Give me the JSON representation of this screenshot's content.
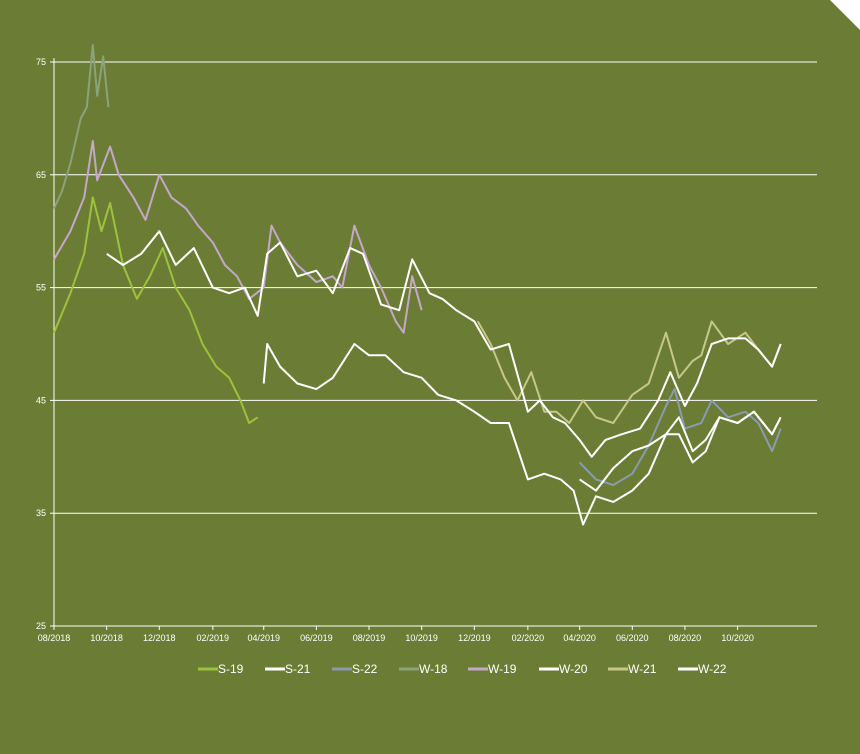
{
  "chart_data": {
    "type": "line",
    "title": "",
    "xlabel": "",
    "ylabel": "",
    "ylim": [
      25,
      75
    ],
    "yticks": [
      25,
      35,
      45,
      55,
      65,
      75
    ],
    "xlim": [
      "2018-08",
      "2021-01"
    ],
    "xticks": [
      "08/2018",
      "10/2018",
      "12/2018",
      "02/2019",
      "04/2019",
      "06/2019",
      "08/2019",
      "10/2019",
      "12/2019",
      "02/2020",
      "04/2020",
      "06/2020",
      "08/2020",
      "10/2020"
    ],
    "grid": "horizontal",
    "legend": "bottom",
    "series": [
      {
        "name": "W-18",
        "color": "#8aa37a",
        "points": [
          [
            "2018-08-01",
            62.0
          ],
          [
            "2018-08-10",
            63.5
          ],
          [
            "2018-08-20",
            66.0
          ],
          [
            "2018-09-01",
            70.0
          ],
          [
            "2018-09-08",
            71.0
          ],
          [
            "2018-09-15",
            76.5
          ],
          [
            "2018-09-20",
            72.0
          ],
          [
            "2018-09-27",
            75.5
          ],
          [
            "2018-10-03",
            71.0
          ]
        ]
      },
      {
        "name": "W-19",
        "color": "#c4a7c9",
        "points": [
          [
            "2018-08-01",
            57.5
          ],
          [
            "2018-08-20",
            60.0
          ],
          [
            "2018-09-05",
            63.0
          ],
          [
            "2018-09-15",
            68.0
          ],
          [
            "2018-09-20",
            64.5
          ],
          [
            "2018-10-05",
            67.5
          ],
          [
            "2018-10-15",
            65.0
          ],
          [
            "2018-11-01",
            63.0
          ],
          [
            "2018-11-15",
            61.0
          ],
          [
            "2018-12-01",
            65.0
          ],
          [
            "2018-12-15",
            63.0
          ],
          [
            "2019-01-01",
            62.0
          ],
          [
            "2019-01-15",
            60.5
          ],
          [
            "2019-02-01",
            59.0
          ],
          [
            "2019-02-15",
            57.0
          ],
          [
            "2019-03-01",
            56.0
          ],
          [
            "2019-03-15",
            54.0
          ],
          [
            "2019-04-01",
            55.0
          ],
          [
            "2019-04-10",
            60.5
          ],
          [
            "2019-04-20",
            59.0
          ],
          [
            "2019-05-10",
            57.0
          ],
          [
            "2019-06-01",
            55.5
          ],
          [
            "2019-06-20",
            56.0
          ],
          [
            "2019-07-01",
            55.0
          ],
          [
            "2019-07-15",
            60.5
          ],
          [
            "2019-08-01",
            57.0
          ],
          [
            "2019-08-15",
            55.0
          ],
          [
            "2019-09-01",
            52.0
          ],
          [
            "2019-09-10",
            51.0
          ],
          [
            "2019-09-20",
            56.0
          ],
          [
            "2019-10-01",
            53.0
          ]
        ]
      },
      {
        "name": "S-19",
        "color": "#9dc23b",
        "points": [
          [
            "2018-08-01",
            51.0
          ],
          [
            "2018-08-20",
            54.5
          ],
          [
            "2018-09-05",
            58.0
          ],
          [
            "2018-09-15",
            63.0
          ],
          [
            "2018-09-25",
            60.0
          ],
          [
            "2018-10-05",
            62.5
          ],
          [
            "2018-10-20",
            57.0
          ],
          [
            "2018-11-05",
            54.0
          ],
          [
            "2018-11-20",
            56.0
          ],
          [
            "2018-12-05",
            58.5
          ],
          [
            "2018-12-20",
            55.0
          ],
          [
            "2019-01-05",
            53.0
          ],
          [
            "2019-01-20",
            50.0
          ],
          [
            "2019-02-05",
            48.0
          ],
          [
            "2019-02-20",
            47.0
          ],
          [
            "2019-03-05",
            45.0
          ],
          [
            "2019-03-15",
            43.0
          ],
          [
            "2019-03-25",
            43.5
          ]
        ]
      },
      {
        "name": "S-21",
        "color": "#ffffff",
        "points": [
          [
            "2019-04-01",
            46.5
          ],
          [
            "2019-04-05",
            50.0
          ],
          [
            "2019-04-20",
            48.0
          ],
          [
            "2019-05-10",
            46.5
          ],
          [
            "2019-06-01",
            46.0
          ],
          [
            "2019-06-20",
            47.0
          ],
          [
            "2019-07-15",
            50.0
          ],
          [
            "2019-08-01",
            49.0
          ],
          [
            "2019-08-20",
            49.0
          ],
          [
            "2019-09-10",
            47.5
          ],
          [
            "2019-10-01",
            47.0
          ],
          [
            "2019-10-20",
            45.5
          ],
          [
            "2019-11-10",
            45.0
          ],
          [
            "2019-12-01",
            44.0
          ],
          [
            "2019-12-20",
            43.0
          ],
          [
            "2020-01-10",
            43.0
          ],
          [
            "2020-02-01",
            38.0
          ],
          [
            "2020-02-20",
            38.5
          ],
          [
            "2020-03-10",
            38.0
          ],
          [
            "2020-03-25",
            37.0
          ],
          [
            "2020-04-05",
            34.0
          ],
          [
            "2020-04-20",
            36.5
          ],
          [
            "2020-05-10",
            36.0
          ],
          [
            "2020-06-01",
            37.0
          ],
          [
            "2020-06-20",
            38.5
          ],
          [
            "2020-07-10",
            42.0
          ],
          [
            "2020-07-25",
            42.0
          ],
          [
            "2020-08-10",
            39.5
          ],
          [
            "2020-08-25",
            40.5
          ],
          [
            "2020-09-10",
            43.5
          ],
          [
            "2020-10-01",
            43.0
          ],
          [
            "2020-10-20",
            44.0
          ],
          [
            "2020-11-10",
            42.0
          ],
          [
            "2020-11-20",
            43.5
          ]
        ]
      },
      {
        "name": "W-21",
        "color": "#c6c78a",
        "points": [
          [
            "2019-12-05",
            52.0
          ],
          [
            "2019-12-20",
            50.0
          ],
          [
            "2020-01-05",
            47.0
          ],
          [
            "2020-01-20",
            45.0
          ],
          [
            "2020-02-05",
            47.5
          ],
          [
            "2020-02-20",
            44.0
          ],
          [
            "2020-03-05",
            44.0
          ],
          [
            "2020-03-20",
            43.0
          ],
          [
            "2020-04-05",
            45.0
          ],
          [
            "2020-04-20",
            43.5
          ],
          [
            "2020-05-10",
            43.0
          ],
          [
            "2020-06-01",
            45.5
          ],
          [
            "2020-06-20",
            46.5
          ],
          [
            "2020-07-10",
            51.0
          ],
          [
            "2020-07-25",
            47.0
          ],
          [
            "2020-08-10",
            48.5
          ],
          [
            "2020-08-20",
            49.0
          ],
          [
            "2020-09-01",
            52.0
          ],
          [
            "2020-09-20",
            50.0
          ],
          [
            "2020-10-10",
            51.0
          ],
          [
            "2020-10-25",
            49.5
          ],
          [
            "2020-11-10",
            48.0
          ],
          [
            "2020-11-20",
            50.0
          ]
        ]
      },
      {
        "name": "S-22",
        "color": "#8a9bb0",
        "points": [
          [
            "2020-04-01",
            39.5
          ],
          [
            "2020-04-20",
            38.0
          ],
          [
            "2020-05-10",
            37.5
          ],
          [
            "2020-06-01",
            38.5
          ],
          [
            "2020-06-20",
            41.0
          ],
          [
            "2020-07-10",
            44.5
          ],
          [
            "2020-07-20",
            46.0
          ],
          [
            "2020-08-01",
            42.5
          ],
          [
            "2020-08-20",
            43.0
          ],
          [
            "2020-09-01",
            45.0
          ],
          [
            "2020-09-20",
            43.5
          ],
          [
            "2020-10-10",
            44.0
          ],
          [
            "2020-10-25",
            43.0
          ],
          [
            "2020-11-10",
            40.5
          ],
          [
            "2020-11-20",
            42.5
          ]
        ]
      },
      {
        "name": "W-20",
        "color": "#ffffff",
        "points": [
          [
            "2018-10-01",
            58.0
          ],
          [
            "2018-10-20",
            57.0
          ],
          [
            "2018-11-10",
            58.0
          ],
          [
            "2018-12-01",
            60.0
          ],
          [
            "2018-12-20",
            57.0
          ],
          [
            "2019-01-10",
            58.5
          ],
          [
            "2019-02-01",
            55.0
          ],
          [
            "2019-02-20",
            54.5
          ],
          [
            "2019-03-10",
            55.0
          ],
          [
            "2019-03-25",
            52.5
          ],
          [
            "2019-04-05",
            58.0
          ],
          [
            "2019-04-20",
            59.0
          ],
          [
            "2019-05-10",
            56.0
          ],
          [
            "2019-06-01",
            56.5
          ],
          [
            "2019-06-20",
            54.5
          ],
          [
            "2019-07-10",
            58.5
          ],
          [
            "2019-07-25",
            58.0
          ],
          [
            "2019-08-15",
            53.5
          ],
          [
            "2019-09-05",
            53.0
          ],
          [
            "2019-09-20",
            57.5
          ],
          [
            "2019-10-10",
            54.5
          ],
          [
            "2019-10-25",
            54.0
          ],
          [
            "2019-11-10",
            53.0
          ],
          [
            "2019-12-01",
            52.0
          ],
          [
            "2019-12-20",
            49.5
          ],
          [
            "2020-01-10",
            50.0
          ],
          [
            "2020-02-01",
            44.0
          ],
          [
            "2020-02-15",
            45.0
          ],
          [
            "2020-03-01",
            43.5
          ],
          [
            "2020-03-15",
            43.0
          ],
          [
            "2020-04-01",
            41.5
          ],
          [
            "2020-04-15",
            40.0
          ],
          [
            "2020-05-01",
            41.5
          ],
          [
            "2020-05-20",
            42.0
          ],
          [
            "2020-06-10",
            42.5
          ],
          [
            "2020-07-01",
            45.0
          ],
          [
            "2020-07-15",
            47.5
          ],
          [
            "2020-08-01",
            44.5
          ],
          [
            "2020-08-15",
            46.5
          ],
          [
            "2020-09-01",
            50.0
          ],
          [
            "2020-09-20",
            50.5
          ],
          [
            "2020-10-10",
            50.5
          ],
          [
            "2020-10-25",
            49.5
          ],
          [
            "2020-11-10",
            48.0
          ],
          [
            "2020-11-20",
            50.0
          ]
        ]
      },
      {
        "name": "W-22",
        "color": "#ffffff",
        "points": [
          [
            "2020-04-01",
            38.0
          ],
          [
            "2020-04-20",
            37.0
          ],
          [
            "2020-05-10",
            39.0
          ],
          [
            "2020-06-01",
            40.5
          ],
          [
            "2020-06-20",
            41.0
          ],
          [
            "2020-07-10",
            42.0
          ],
          [
            "2020-07-25",
            43.5
          ],
          [
            "2020-08-10",
            40.5
          ],
          [
            "2020-08-25",
            41.5
          ],
          [
            "2020-09-10",
            43.5
          ],
          [
            "2020-10-01",
            43.0
          ],
          [
            "2020-10-20",
            44.0
          ],
          [
            "2020-11-10",
            42.0
          ],
          [
            "2020-11-20",
            43.5
          ]
        ]
      }
    ]
  }
}
